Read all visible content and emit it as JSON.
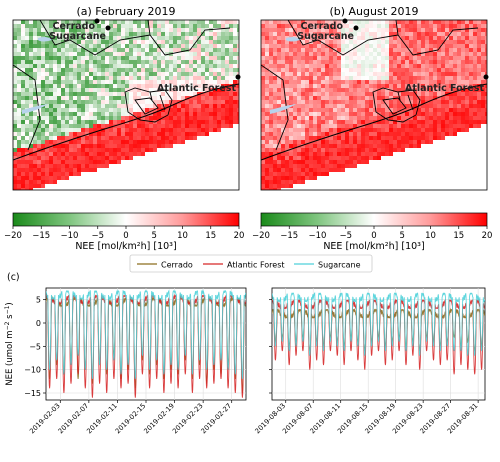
{
  "maps": [
    {
      "title": "(a) February 2019",
      "labels": [
        "Cerrado",
        "Sugarcane",
        "Atlantic Forest"
      ],
      "colorbar": {
        "ticks": [
          "−20",
          "−15",
          "−10",
          "−5",
          "0",
          "5",
          "10",
          "15",
          "20"
        ],
        "label": "NEE [mol/km²h] [10³]",
        "cmap": [
          "#1a8a1a",
          "#ffffff",
          "#ff0000"
        ]
      }
    },
    {
      "title": "(b) August 2019",
      "labels": [
        "Cerrado",
        "Sugarcane",
        "Atlantic Forest"
      ],
      "colorbar": {
        "ticks": [
          "−20",
          "−15",
          "−10",
          "−5",
          "0",
          "5",
          "10",
          "15",
          "20"
        ],
        "label": "NEE [mol/km²h] [10³]",
        "cmap": [
          "#1a8a1a",
          "#ffffff",
          "#ff0000"
        ]
      }
    }
  ],
  "panel_c_label": "(c)",
  "chart_data": [
    {
      "type": "line",
      "ylabel_main": "NEE (umol m",
      "ylabel_sup1": "−2",
      "ylabel_mid": " s",
      "ylabel_sup2": "−1",
      "ylabel_end": ")",
      "ylim": [
        -16.5,
        7.5
      ],
      "yticks": [
        {
          "v": 5,
          "t": "5"
        },
        {
          "v": 0,
          "t": "0"
        },
        {
          "v": -5,
          "t": "−5"
        },
        {
          "v": -10,
          "t": "−10"
        },
        {
          "v": -15,
          "t": "−15"
        }
      ],
      "xlim": [
        "2019-02-01",
        "2019-02-29"
      ],
      "xticks": [
        "2019-02-03",
        "2019-02-07",
        "2019-02-11",
        "2019-02-15",
        "2019-02-19",
        "2019-02-23",
        "2019-02-27"
      ],
      "legend": [
        {
          "name": "Cerrado",
          "color": "#8c6d1f"
        },
        {
          "name": "Atlantic Forest",
          "color": "#d62728"
        },
        {
          "name": "Sugarcane",
          "color": "#4fd1d9"
        }
      ],
      "series": [
        {
          "name": "Cerrado",
          "color": "#8c6d1f",
          "night": 4.5,
          "day_min": [
            -12,
            -9,
            -11,
            -8,
            -12,
            -10,
            -13,
            -9,
            -11,
            -7,
            -12,
            -10,
            -14,
            -8,
            -11,
            -9,
            -12,
            -10,
            -11,
            -8,
            -12,
            -9,
            -13,
            -10,
            -11,
            -9,
            -12,
            -15
          ]
        },
        {
          "name": "Atlantic Forest",
          "color": "#d62728",
          "night": 5.0,
          "day_min": [
            -14,
            -12,
            -15,
            -13,
            -11,
            -14,
            -16,
            -13,
            -15,
            -12,
            -14,
            -13,
            -16,
            -11,
            -14,
            -12,
            -15,
            -13,
            -14,
            -11,
            -15,
            -12,
            -14,
            -13,
            -12,
            -14,
            -15,
            -16
          ]
        },
        {
          "name": "Sugarcane",
          "color": "#4fd1d9",
          "night": 6.0,
          "day_min": [
            -10,
            -8,
            -11,
            -9,
            -7,
            -10,
            -12,
            -9,
            -10,
            -8,
            -11,
            -9,
            -12,
            -7,
            -10,
            -8,
            -11,
            -9,
            -10,
            -7,
            -11,
            -8,
            -10,
            -9,
            -8,
            -10,
            -11,
            -12
          ]
        }
      ]
    },
    {
      "type": "line",
      "ylim": [
        -16.5,
        7.5
      ],
      "xlim": [
        "2019-08-01",
        "2019-09-01"
      ],
      "xticks": [
        "2019-08-03",
        "2019-08-07",
        "2019-08-11",
        "2019-08-15",
        "2019-08-19",
        "2019-08-23",
        "2019-08-27",
        "2019-08-31"
      ],
      "series": [
        {
          "name": "Cerrado",
          "color": "#8c6d1f",
          "night": 2.0,
          "day_min": [
            -4,
            -3,
            -5,
            -4,
            -3,
            -6,
            -4,
            -5,
            -3,
            -4,
            -5,
            -3,
            -4,
            -6,
            -4,
            -3,
            -5,
            -4,
            -3,
            -5,
            -4,
            -6,
            -3,
            -4,
            -5,
            -4,
            -3,
            -5,
            -4,
            -6,
            -5
          ]
        },
        {
          "name": "Atlantic Forest",
          "color": "#d62728",
          "night": 4.0,
          "day_min": [
            -8,
            -6,
            -9,
            -7,
            -6,
            -10,
            -8,
            -9,
            -6,
            -7,
            -9,
            -6,
            -8,
            -10,
            -7,
            -6,
            -9,
            -8,
            -6,
            -9,
            -7,
            -10,
            -6,
            -8,
            -9,
            -8,
            -11,
            -9,
            -10,
            -11,
            -10
          ]
        },
        {
          "name": "Sugarcane",
          "color": "#4fd1d9",
          "night": 5.5,
          "day_min": [
            -5,
            -4,
            -6,
            -5,
            -4,
            -7,
            -5,
            -6,
            -4,
            -5,
            -6,
            -4,
            -5,
            -7,
            -5,
            -4,
            -6,
            -5,
            -4,
            -6,
            -5,
            -7,
            -4,
            -5,
            -6,
            -5,
            -6,
            -6,
            -7,
            -7,
            -6
          ]
        }
      ]
    }
  ]
}
